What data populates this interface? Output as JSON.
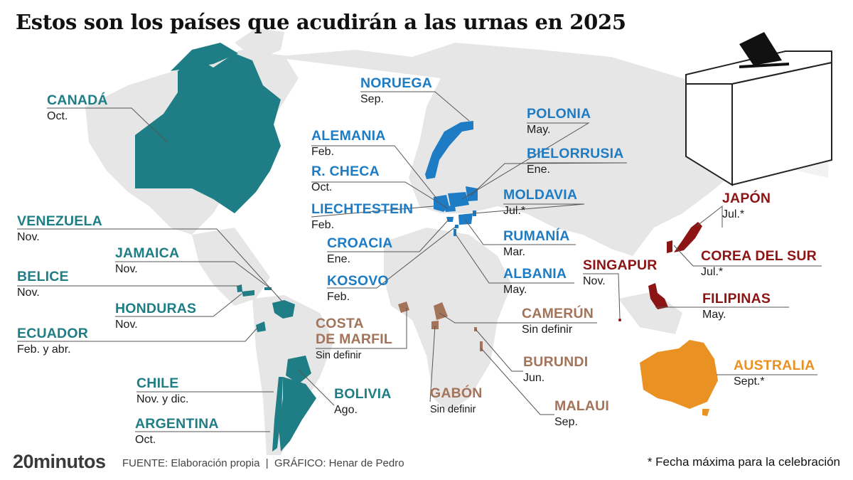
{
  "title": "Estos son los países que acudirán a las urnas en 2025",
  "colors": {
    "america": "#1f7e85",
    "europe": "#1e7cc4",
    "africa": "#a3735a",
    "asia": "#8c1414",
    "oceania": "#ea9124",
    "land": "#e6e6e6"
  },
  "countries": [
    {
      "name": "CANADÁ",
      "date": "Oct."
    },
    {
      "name": "VENEZUELA",
      "date": "Nov."
    },
    {
      "name": "JAMAICA",
      "date": "Nov."
    },
    {
      "name": "BELICE",
      "date": "Nov."
    },
    {
      "name": "HONDURAS",
      "date": "Nov."
    },
    {
      "name": "ECUADOR",
      "date": "Feb. y abr."
    },
    {
      "name": "CHILE",
      "date": "Nov. y dic."
    },
    {
      "name": "BOLIVIA",
      "date": "Ago."
    },
    {
      "name": "ARGENTINA",
      "date": "Oct."
    },
    {
      "name": "NORUEGA",
      "date": "Sep."
    },
    {
      "name": "ALEMANIA",
      "date": "Feb."
    },
    {
      "name": "R. CHECA",
      "date": "Oct."
    },
    {
      "name": "LIECHTESTEIN",
      "date": "Feb."
    },
    {
      "name": "CROACIA",
      "date": "Ene."
    },
    {
      "name": "KOSOVO",
      "date": "Feb."
    },
    {
      "name": "POLONIA",
      "date": "May."
    },
    {
      "name": "BIELORRUSIA",
      "date": "Ene."
    },
    {
      "name": "MOLDAVIA",
      "date": "Jul.*"
    },
    {
      "name": "RUMANÍA",
      "date": "Mar."
    },
    {
      "name": "ALBANIA",
      "date": "May."
    },
    {
      "name": "COSTA\nDE MARFIL",
      "date": "Sin definir"
    },
    {
      "name": "GABÓN",
      "date": "Sin definir"
    },
    {
      "name": "CAMERÚN",
      "date": "Sin definir"
    },
    {
      "name": "BURUNDI",
      "date": "Jun."
    },
    {
      "name": "MALAUI",
      "date": "Sep."
    },
    {
      "name": "SINGAPUR",
      "date": "Nov."
    },
    {
      "name": "JAPÓN",
      "date": "Jul.*"
    },
    {
      "name": "COREA DEL SUR",
      "date": "Jul.*"
    },
    {
      "name": "FILIPINAS",
      "date": "May."
    },
    {
      "name": "AUSTRALIA",
      "date": "Sept.*"
    }
  ],
  "footer": {
    "logo": "20minutos",
    "source": "FUENTE: Elaboración propia  |  GRÁFICO: Henar de Pedro",
    "note": "* Fecha máxima para la celebración"
  }
}
